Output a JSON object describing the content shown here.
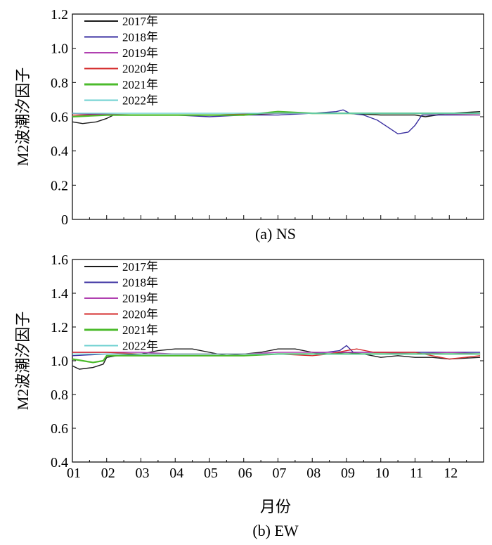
{
  "x_axis_label": "月份",
  "chart_data": [
    {
      "type": "line",
      "caption": "(a) NS",
      "ylabel": "M2波潮汐因子",
      "xlabel": "",
      "ylim": [
        0,
        1.2
      ],
      "yticks": [
        "0",
        "0.2",
        "0.4",
        "0.6",
        "0.8",
        "1.0",
        "1.2"
      ],
      "xticks": [],
      "grid": false,
      "legend_position": "top-left",
      "series": [
        {
          "name": "2017年",
          "color": "#1a1a1a",
          "x": [
            1.0,
            1.3,
            1.7,
            2.0,
            2.2,
            3,
            4,
            5,
            6,
            7,
            8,
            9,
            10,
            10.5,
            11,
            11.3,
            12,
            12.9
          ],
          "y": [
            0.57,
            0.56,
            0.57,
            0.59,
            0.61,
            0.61,
            0.61,
            0.61,
            0.61,
            0.62,
            0.62,
            0.62,
            0.61,
            0.61,
            0.61,
            0.6,
            0.62,
            0.63
          ]
        },
        {
          "name": "2018年",
          "color": "#3a2fa0",
          "x": [
            1.0,
            2,
            3,
            4,
            5,
            6,
            7,
            8,
            8.7,
            8.9,
            9.1,
            9.5,
            9.9,
            10.2,
            10.5,
            10.8,
            11.0,
            11.2,
            12,
            12.9
          ],
          "y": [
            0.62,
            0.61,
            0.61,
            0.61,
            0.6,
            0.61,
            0.61,
            0.62,
            0.63,
            0.64,
            0.62,
            0.61,
            0.58,
            0.54,
            0.5,
            0.51,
            0.55,
            0.61,
            0.61,
            0.61
          ]
        },
        {
          "name": "2019年",
          "color": "#b040b0",
          "x": [
            1.0,
            3,
            5,
            7,
            9,
            11,
            12.9
          ],
          "y": [
            0.62,
            0.61,
            0.61,
            0.62,
            0.62,
            0.62,
            0.61
          ]
        },
        {
          "name": "2020年",
          "color": "#d42a2a",
          "x": [
            1.0,
            3,
            5,
            7,
            9,
            11,
            12.9
          ],
          "y": [
            0.61,
            0.61,
            0.61,
            0.62,
            0.62,
            0.62,
            0.62
          ]
        },
        {
          "name": "2021年",
          "color": "#4cbb2c",
          "x": [
            1.0,
            2,
            4,
            6,
            7,
            8,
            10,
            12,
            12.9
          ],
          "y": [
            0.6,
            0.61,
            0.61,
            0.61,
            0.63,
            0.62,
            0.62,
            0.62,
            0.62
          ]
        },
        {
          "name": "2022年",
          "color": "#6dd0d0",
          "x": [
            1.0,
            3,
            5,
            7,
            9,
            11,
            12.9
          ],
          "y": [
            0.62,
            0.62,
            0.62,
            0.62,
            0.62,
            0.62,
            0.62
          ]
        }
      ]
    },
    {
      "type": "line",
      "caption": "(b) EW",
      "ylabel": "M2波潮汐因子",
      "xlabel": "月份",
      "ylim": [
        0.4,
        1.6
      ],
      "yticks": [
        "0.4",
        "0.6",
        "0.8",
        "1.0",
        "1.2",
        "1.4",
        "1.6"
      ],
      "xticks": [
        "01",
        "02",
        "03",
        "04",
        "05",
        "06",
        "07",
        "08",
        "09",
        "10",
        "11",
        "12"
      ],
      "grid": false,
      "legend_position": "top-left",
      "series": [
        {
          "name": "2017年",
          "color": "#1a1a1a",
          "x": [
            1.0,
            1.2,
            1.6,
            1.9,
            2.0,
            2.3,
            3,
            3.5,
            4,
            4.5,
            5,
            5.5,
            6,
            6.5,
            7,
            7.5,
            8,
            8.5,
            9,
            9.5,
            10,
            10.5,
            11,
            11.5,
            12,
            12.9
          ],
          "y": [
            0.97,
            0.95,
            0.96,
            0.98,
            1.02,
            1.03,
            1.04,
            1.06,
            1.07,
            1.07,
            1.05,
            1.03,
            1.04,
            1.05,
            1.07,
            1.07,
            1.05,
            1.04,
            1.05,
            1.04,
            1.02,
            1.03,
            1.02,
            1.02,
            1.01,
            1.02
          ]
        },
        {
          "name": "2018年",
          "color": "#3a2fa0",
          "x": [
            1.0,
            2,
            3,
            4,
            5,
            6,
            7,
            8,
            8.8,
            9.0,
            9.2,
            10,
            11,
            12,
            12.9
          ],
          "y": [
            1.03,
            1.04,
            1.04,
            1.04,
            1.04,
            1.04,
            1.04,
            1.04,
            1.06,
            1.09,
            1.05,
            1.05,
            1.05,
            1.05,
            1.05
          ]
        },
        {
          "name": "2019年",
          "color": "#b040b0",
          "x": [
            1.0,
            2,
            3,
            4,
            5,
            6,
            7,
            8,
            9,
            10,
            11,
            12,
            12.9
          ],
          "y": [
            1.05,
            1.05,
            1.05,
            1.04,
            1.04,
            1.04,
            1.05,
            1.05,
            1.05,
            1.05,
            1.04,
            1.05,
            1.04
          ]
        },
        {
          "name": "2020年",
          "color": "#d42a2a",
          "x": [
            1.0,
            2,
            3,
            4,
            5,
            6,
            7,
            8,
            8.5,
            9.0,
            9.3,
            9.8,
            10.5,
            11,
            11.5,
            12,
            12.9
          ],
          "y": [
            1.05,
            1.05,
            1.04,
            1.04,
            1.04,
            1.04,
            1.04,
            1.03,
            1.04,
            1.06,
            1.07,
            1.05,
            1.05,
            1.05,
            1.03,
            1.01,
            1.03
          ]
        },
        {
          "name": "2021年",
          "color": "#4cbb2c",
          "x": [
            1.0,
            1.3,
            1.6,
            1.9,
            2.0,
            3,
            4,
            5,
            6,
            7,
            8,
            9,
            10,
            11,
            12,
            12.9
          ],
          "y": [
            1.01,
            1.0,
            0.99,
            1.0,
            1.03,
            1.03,
            1.03,
            1.03,
            1.03,
            1.04,
            1.04,
            1.04,
            1.04,
            1.04,
            1.04,
            1.04
          ]
        },
        {
          "name": "2022年",
          "color": "#6dd0d0",
          "x": [
            1.0,
            3,
            5,
            7,
            9,
            11,
            12.9
          ],
          "y": [
            1.04,
            1.04,
            1.04,
            1.04,
            1.04,
            1.04,
            1.04
          ]
        }
      ]
    }
  ]
}
